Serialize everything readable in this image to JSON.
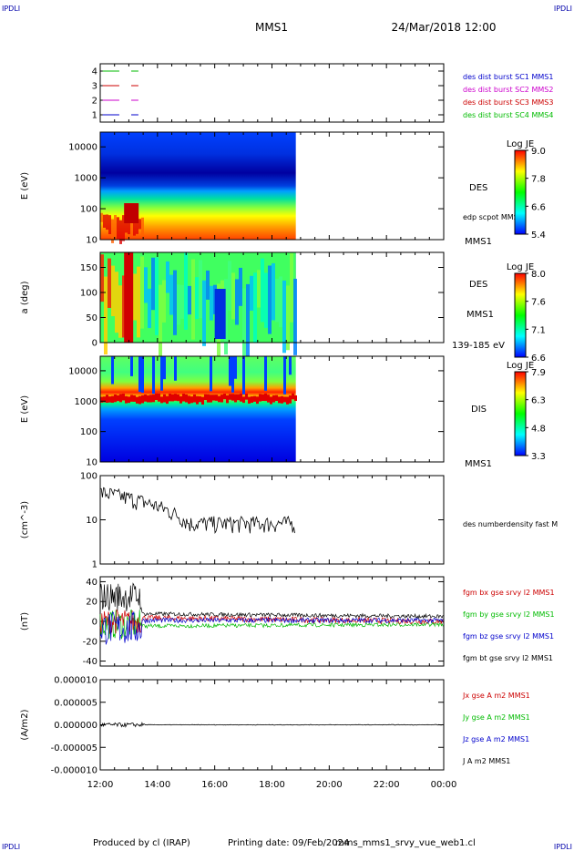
{
  "header": {
    "corner_left_top": "IPDLI",
    "corner_right_top": "IPDLI",
    "corner_left_bottom": "IPDLI",
    "corner_right_bottom": "IPDLI",
    "spacecraft": "MMS1",
    "date": "24/Mar/2018 12:00"
  },
  "footer": {
    "produced": "Produced by cl (IRAP)",
    "printing": "Printing date: 09/Feb/2024",
    "filename": "mms_mms1_srvy_vue_web1.cl"
  },
  "time_axis": {
    "start": "12:00",
    "end": "00:00",
    "ticks": [
      "12:00",
      "14:00",
      "16:00",
      "18:00",
      "20:00",
      "22:00",
      "00:00"
    ],
    "data_end": "18:50"
  },
  "chart_data": [
    {
      "type": "line",
      "id": "burst",
      "ylim": [
        0.5,
        4.5
      ],
      "yticks": [
        "1",
        "2",
        "3",
        "4"
      ],
      "ylabel": "",
      "series": [
        {
          "name": "des dist burst SC1 MMS1",
          "color": "#0000cc",
          "level": 1
        },
        {
          "name": "des dist burst SC2 MMS2",
          "color": "#cc00cc",
          "level": 2
        },
        {
          "name": "des dist burst SC3 MMS3",
          "color": "#cc0000",
          "level": 3
        },
        {
          "name": "des dist burst SC4 MMS4",
          "color": "#00bb00",
          "level": 4
        }
      ],
      "intervals": [
        [
          "12:05",
          "12:40"
        ],
        [
          "13:05",
          "13:20"
        ]
      ]
    },
    {
      "type": "heatmap",
      "id": "des-energy",
      "ylabel": "E (eV)",
      "yscale": "log",
      "yticks": [
        "10",
        "100",
        "1000",
        "10000"
      ],
      "label": "DES",
      "overlay": "edp scpot MMS1",
      "below_label": "MMS1",
      "colorbar": {
        "title": "Log JE",
        "ticks": [
          "9.0",
          "7.8",
          "6.6",
          "5.4"
        ]
      }
    },
    {
      "type": "heatmap",
      "id": "des-pitch",
      "ylabel": "a (deg)",
      "yticks": [
        "0",
        "50",
        "100",
        "150"
      ],
      "label": "DES",
      "sublabel": "MMS1",
      "below_label": "139-185 eV",
      "colorbar": {
        "title": "Log JE",
        "ticks": [
          "8.0",
          "7.6",
          "7.1",
          "6.6"
        ]
      }
    },
    {
      "type": "heatmap",
      "id": "dis-energy",
      "ylabel": "E (eV)",
      "yscale": "log",
      "yticks": [
        "10",
        "100",
        "1000",
        "10000"
      ],
      "label": "DIS",
      "below_label": "MMS1",
      "colorbar": {
        "title": "Log JE",
        "ticks": [
          "7.9",
          "6.3",
          "4.8",
          "3.3"
        ]
      }
    },
    {
      "type": "line",
      "id": "density",
      "ylabel": "(cm^-3)",
      "yscale": "log",
      "yticks": [
        "1",
        "10",
        "100"
      ],
      "series": [
        {
          "name": "des numberdensity fast M",
          "color": "#000000"
        }
      ]
    },
    {
      "type": "line",
      "id": "fgm",
      "ylabel": "(nT)",
      "ylim": [
        -45,
        45
      ],
      "yticks": [
        "-40",
        "-20",
        "0",
        "20",
        "40"
      ],
      "series": [
        {
          "name": "fgm bx gse srvy l2 MMS1",
          "color": "#cc0000"
        },
        {
          "name": "fgm by gse srvy l2 MMS1",
          "color": "#00bb00"
        },
        {
          "name": "fgm bz gse srvy l2 MMS1",
          "color": "#0000cc"
        },
        {
          "name": "fgm bt gse srvy l2 MMS1",
          "color": "#000000"
        }
      ]
    },
    {
      "type": "line",
      "id": "current",
      "ylabel": "(A/m2)",
      "ylim": [
        -1e-05,
        1e-05
      ],
      "yticks": [
        "-0.000010",
        "-0.000005",
        "0.000000",
        "0.000005",
        "0.000010"
      ],
      "series": [
        {
          "name": "Jx gse A m2 MMS1",
          "color": "#cc0000"
        },
        {
          "name": "Jy gse A m2 MMS1",
          "color": "#00bb00"
        },
        {
          "name": "Jz gse A m2 MMS1",
          "color": "#0000cc"
        },
        {
          "name": "J A m2 MMS1",
          "color": "#000000"
        }
      ]
    }
  ]
}
